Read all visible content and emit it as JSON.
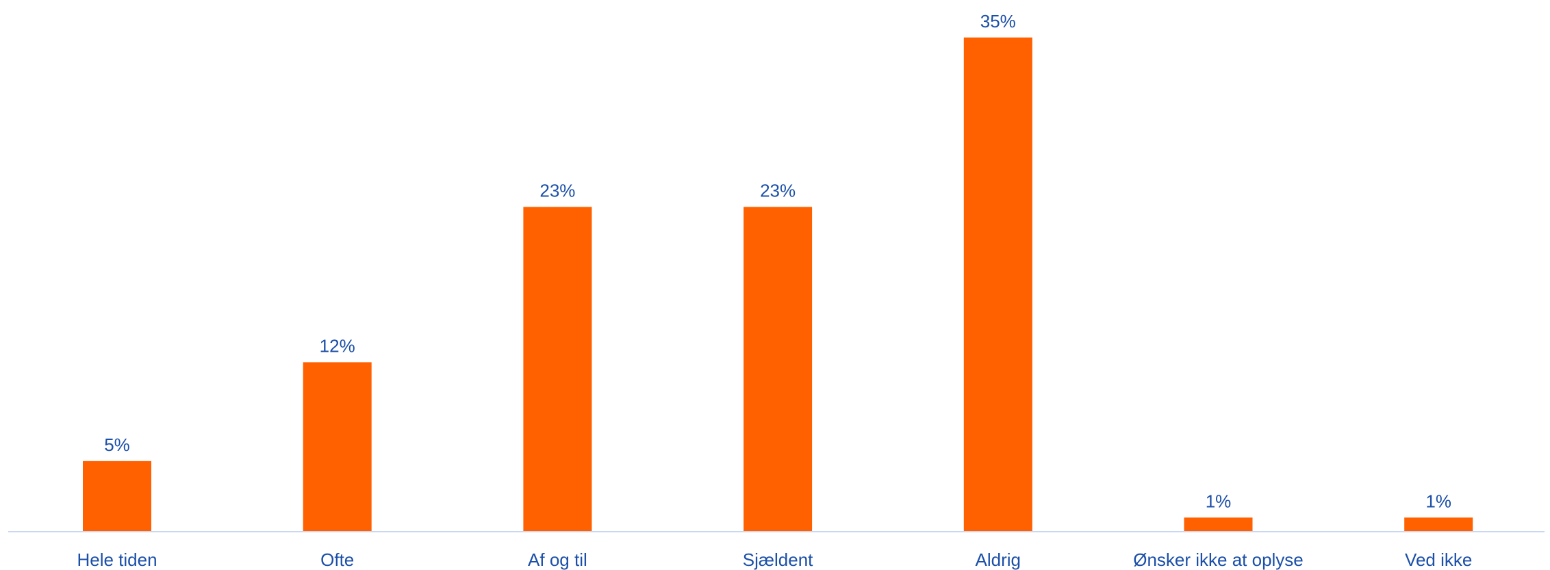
{
  "chart_data": {
    "type": "bar",
    "categories": [
      "Hele tiden",
      "Ofte",
      "Af og til",
      "Sjældent",
      "Aldrig",
      "Ønsker ikke at oplyse",
      "Ved ikke"
    ],
    "values": [
      5,
      12,
      23,
      23,
      35,
      1,
      1
    ],
    "value_labels": [
      "5%",
      "12%",
      "23%",
      "23%",
      "35%",
      "1%",
      "1%"
    ],
    "ylim": [
      0,
      36.2
    ],
    "grid": false,
    "legend": "none",
    "colors": {
      "bar": "#ff6000",
      "text": "#1b4fa8",
      "axis": "#c9d8f0"
    }
  }
}
